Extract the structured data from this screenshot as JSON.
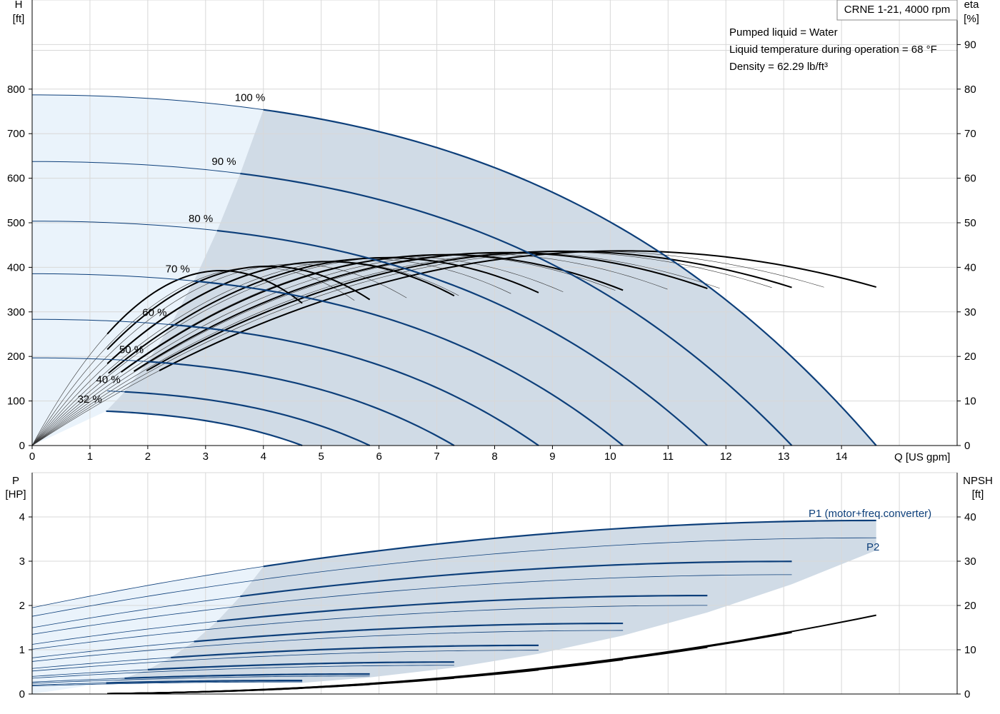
{
  "info": {
    "title": "CRNE 1-21, 4000 rpm",
    "lines": [
      "Pumped liquid = Water",
      "Liquid temperature during operation = 68 °F",
      "Density = 62.29 lb/ft³"
    ]
  },
  "colors": {
    "blue": "#0d3f7a",
    "region": "#d0dbe6",
    "light_region": "#eaf3fb",
    "grid": "#d8d8d8",
    "black": "#000000"
  },
  "chart_data": [
    {
      "type": "line",
      "name": "head-efficiency",
      "x_axis": {
        "label": "Q [US gpm]",
        "range": [
          0,
          16
        ],
        "ticks": [
          0,
          1,
          2,
          3,
          4,
          5,
          6,
          7,
          8,
          9,
          10,
          11,
          12,
          13,
          14
        ]
      },
      "y_left": {
        "label_lines": [
          "H",
          "[ft]"
        ],
        "range": [
          0,
          1000
        ],
        "ticks": [
          0,
          100,
          200,
          300,
          400,
          500,
          600,
          700,
          800
        ]
      },
      "y_right": {
        "label_lines": [
          "eta",
          "[%]"
        ],
        "range": [
          0,
          100
        ],
        "ticks": [
          0,
          10,
          20,
          30,
          40,
          50,
          60,
          70,
          80,
          90
        ]
      },
      "grid": true,
      "qh_curves": [
        {
          "label": "100 %",
          "s": 1.0
        },
        {
          "label": "90 %",
          "s": 0.9
        },
        {
          "label": "80 %",
          "s": 0.8
        },
        {
          "label": "70 %",
          "s": 0.7
        },
        {
          "label": "60 %",
          "s": 0.6
        },
        {
          "label": "50 %",
          "s": 0.5
        },
        {
          "label": "40 %",
          "s": 0.4
        },
        {
          "label": "32 %",
          "s": 0.32
        }
      ],
      "qh_model": {
        "h0": 787,
        "a": 0.5,
        "b": 1.6,
        "qmax": 14.6,
        "q_dashed_end": 4.0
      },
      "eta_model": {
        "peak_eta": 43.7,
        "peak_q": 10.2,
        "flat": 0.22
      }
    },
    {
      "type": "line",
      "name": "power-npsh",
      "x_axis": {
        "label": "",
        "range": [
          0,
          16
        ]
      },
      "y_left": {
        "label_lines": [
          "P",
          "[HP]"
        ],
        "range": [
          0,
          5
        ],
        "ticks": [
          0,
          1,
          2,
          3,
          4
        ]
      },
      "y_right": {
        "label_lines": [
          "NPSH",
          "[ft]"
        ],
        "range": [
          0,
          50
        ],
        "ticks": [
          0,
          10,
          20,
          30,
          40
        ]
      },
      "grid": true,
      "series_labels": {
        "p1": "P1 (motor+freq.converter)",
        "p2": "P2"
      },
      "p_model": {
        "p1_0": 1.95,
        "p1_max": 3.92,
        "p1_end": 3.89,
        "p2_ratio": 0.9
      },
      "npsh_model": {
        "end_value": 17.8,
        "exp": 2.2
      }
    }
  ]
}
